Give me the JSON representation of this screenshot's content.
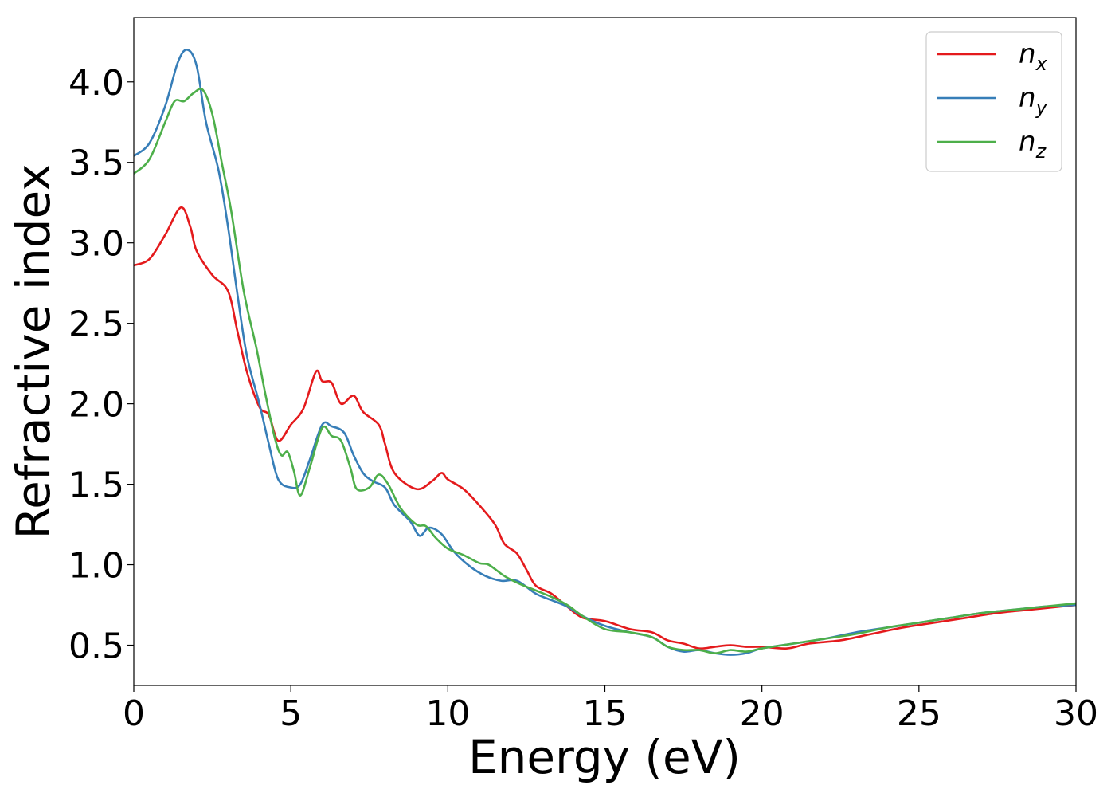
{
  "chart_data": {
    "type": "line",
    "xlabel": "Energy (eV)",
    "ylabel": "Refractive index",
    "xlim": [
      0,
      30
    ],
    "ylim": [
      0.25,
      4.4
    ],
    "xticks": [
      0,
      5,
      10,
      15,
      20,
      25,
      30
    ],
    "yticks": [
      0.5,
      1.0,
      1.5,
      2.0,
      2.5,
      3.0,
      3.5,
      4.0
    ],
    "xtick_labels": [
      "0",
      "5",
      "10",
      "15",
      "20",
      "25",
      "30"
    ],
    "ytick_labels": [
      "0.5",
      "1.0",
      "1.5",
      "2.0",
      "2.5",
      "3.0",
      "3.5",
      "4.0"
    ],
    "grid": false,
    "legend_position": "top-right",
    "series": [
      {
        "name": "n_x",
        "base": "n",
        "sub": "x",
        "color": "#e41a1c",
        "points": [
          [
            0,
            2.86
          ],
          [
            0.5,
            2.9
          ],
          [
            1.0,
            3.05
          ],
          [
            1.5,
            3.22
          ],
          [
            1.8,
            3.1
          ],
          [
            2.0,
            2.95
          ],
          [
            2.5,
            2.8
          ],
          [
            3.0,
            2.7
          ],
          [
            3.3,
            2.45
          ],
          [
            3.6,
            2.2
          ],
          [
            4.0,
            1.98
          ],
          [
            4.3,
            1.93
          ],
          [
            4.6,
            1.77
          ],
          [
            5.0,
            1.87
          ],
          [
            5.4,
            1.97
          ],
          [
            5.8,
            2.2
          ],
          [
            6.0,
            2.14
          ],
          [
            6.3,
            2.13
          ],
          [
            6.6,
            2.0
          ],
          [
            7.0,
            2.05
          ],
          [
            7.3,
            1.95
          ],
          [
            7.8,
            1.87
          ],
          [
            8.0,
            1.75
          ],
          [
            8.3,
            1.57
          ],
          [
            9.0,
            1.47
          ],
          [
            9.5,
            1.52
          ],
          [
            9.8,
            1.57
          ],
          [
            10.0,
            1.53
          ],
          [
            10.5,
            1.47
          ],
          [
            11.0,
            1.37
          ],
          [
            11.5,
            1.25
          ],
          [
            11.8,
            1.13
          ],
          [
            12.2,
            1.07
          ],
          [
            12.5,
            0.97
          ],
          [
            12.8,
            0.87
          ],
          [
            13.3,
            0.82
          ],
          [
            13.8,
            0.74
          ],
          [
            14.3,
            0.67
          ],
          [
            15.0,
            0.65
          ],
          [
            15.8,
            0.6
          ],
          [
            16.5,
            0.58
          ],
          [
            17.0,
            0.53
          ],
          [
            17.5,
            0.51
          ],
          [
            18.0,
            0.48
          ],
          [
            18.5,
            0.49
          ],
          [
            19.0,
            0.5
          ],
          [
            19.5,
            0.49
          ],
          [
            20.0,
            0.49
          ],
          [
            20.8,
            0.48
          ],
          [
            21.5,
            0.51
          ],
          [
            22.5,
            0.53
          ],
          [
            23.5,
            0.57
          ],
          [
            24.5,
            0.61
          ],
          [
            25.5,
            0.64
          ],
          [
            26.5,
            0.67
          ],
          [
            27.5,
            0.7
          ],
          [
            28.5,
            0.72
          ],
          [
            29.5,
            0.74
          ],
          [
            30.0,
            0.75
          ]
        ]
      },
      {
        "name": "n_y",
        "base": "n",
        "sub": "y",
        "color": "#377eb8",
        "points": [
          [
            0,
            3.54
          ],
          [
            0.5,
            3.62
          ],
          [
            1.0,
            3.85
          ],
          [
            1.4,
            4.12
          ],
          [
            1.7,
            4.2
          ],
          [
            2.0,
            4.1
          ],
          [
            2.3,
            3.75
          ],
          [
            2.7,
            3.45
          ],
          [
            3.0,
            3.1
          ],
          [
            3.3,
            2.68
          ],
          [
            3.6,
            2.3
          ],
          [
            4.0,
            2.0
          ],
          [
            4.3,
            1.75
          ],
          [
            4.6,
            1.53
          ],
          [
            5.0,
            1.48
          ],
          [
            5.3,
            1.5
          ],
          [
            5.6,
            1.65
          ],
          [
            6.0,
            1.87
          ],
          [
            6.3,
            1.86
          ],
          [
            6.7,
            1.82
          ],
          [
            7.0,
            1.68
          ],
          [
            7.3,
            1.57
          ],
          [
            7.6,
            1.52
          ],
          [
            8.0,
            1.48
          ],
          [
            8.3,
            1.37
          ],
          [
            8.8,
            1.27
          ],
          [
            9.1,
            1.18
          ],
          [
            9.4,
            1.23
          ],
          [
            9.8,
            1.19
          ],
          [
            10.2,
            1.08
          ],
          [
            10.7,
            0.99
          ],
          [
            11.2,
            0.93
          ],
          [
            11.7,
            0.9
          ],
          [
            12.2,
            0.9
          ],
          [
            12.8,
            0.82
          ],
          [
            13.3,
            0.78
          ],
          [
            13.8,
            0.74
          ],
          [
            14.3,
            0.68
          ],
          [
            15.0,
            0.62
          ],
          [
            15.8,
            0.58
          ],
          [
            16.5,
            0.55
          ],
          [
            17.0,
            0.49
          ],
          [
            17.5,
            0.46
          ],
          [
            18.0,
            0.47
          ],
          [
            18.5,
            0.45
          ],
          [
            19.0,
            0.44
          ],
          [
            19.5,
            0.45
          ],
          [
            20.0,
            0.48
          ],
          [
            21.0,
            0.51
          ],
          [
            22.0,
            0.54
          ],
          [
            23.0,
            0.58
          ],
          [
            24.0,
            0.61
          ],
          [
            25.0,
            0.64
          ],
          [
            26.0,
            0.67
          ],
          [
            27.0,
            0.7
          ],
          [
            28.0,
            0.72
          ],
          [
            29.0,
            0.74
          ],
          [
            30.0,
            0.75
          ]
        ]
      },
      {
        "name": "n_z",
        "base": "n",
        "sub": "z",
        "color": "#4daf4a",
        "points": [
          [
            0,
            3.43
          ],
          [
            0.5,
            3.52
          ],
          [
            1.0,
            3.75
          ],
          [
            1.3,
            3.88
          ],
          [
            1.6,
            3.88
          ],
          [
            1.9,
            3.93
          ],
          [
            2.2,
            3.95
          ],
          [
            2.5,
            3.8
          ],
          [
            2.8,
            3.5
          ],
          [
            3.1,
            3.2
          ],
          [
            3.5,
            2.7
          ],
          [
            3.9,
            2.35
          ],
          [
            4.2,
            2.05
          ],
          [
            4.5,
            1.78
          ],
          [
            4.7,
            1.68
          ],
          [
            4.9,
            1.7
          ],
          [
            5.1,
            1.58
          ],
          [
            5.3,
            1.43
          ],
          [
            5.6,
            1.6
          ],
          [
            6.0,
            1.85
          ],
          [
            6.3,
            1.8
          ],
          [
            6.6,
            1.77
          ],
          [
            6.9,
            1.6
          ],
          [
            7.1,
            1.47
          ],
          [
            7.5,
            1.48
          ],
          [
            7.8,
            1.56
          ],
          [
            8.1,
            1.5
          ],
          [
            8.5,
            1.35
          ],
          [
            9.0,
            1.25
          ],
          [
            9.3,
            1.24
          ],
          [
            9.6,
            1.17
          ],
          [
            10.0,
            1.1
          ],
          [
            10.5,
            1.06
          ],
          [
            11.0,
            1.01
          ],
          [
            11.3,
            1.0
          ],
          [
            11.8,
            0.93
          ],
          [
            12.3,
            0.88
          ],
          [
            12.8,
            0.84
          ],
          [
            13.3,
            0.8
          ],
          [
            13.8,
            0.75
          ],
          [
            14.3,
            0.68
          ],
          [
            15.0,
            0.6
          ],
          [
            15.8,
            0.58
          ],
          [
            16.5,
            0.55
          ],
          [
            17.0,
            0.49
          ],
          [
            17.5,
            0.47
          ],
          [
            18.0,
            0.47
          ],
          [
            18.5,
            0.45
          ],
          [
            19.0,
            0.47
          ],
          [
            19.5,
            0.46
          ],
          [
            20.0,
            0.48
          ],
          [
            21.0,
            0.51
          ],
          [
            22.0,
            0.54
          ],
          [
            23.0,
            0.57
          ],
          [
            24.0,
            0.61
          ],
          [
            25.0,
            0.64
          ],
          [
            26.0,
            0.67
          ],
          [
            27.0,
            0.7
          ],
          [
            28.0,
            0.72
          ],
          [
            29.0,
            0.74
          ],
          [
            30.0,
            0.76
          ]
        ]
      }
    ]
  }
}
